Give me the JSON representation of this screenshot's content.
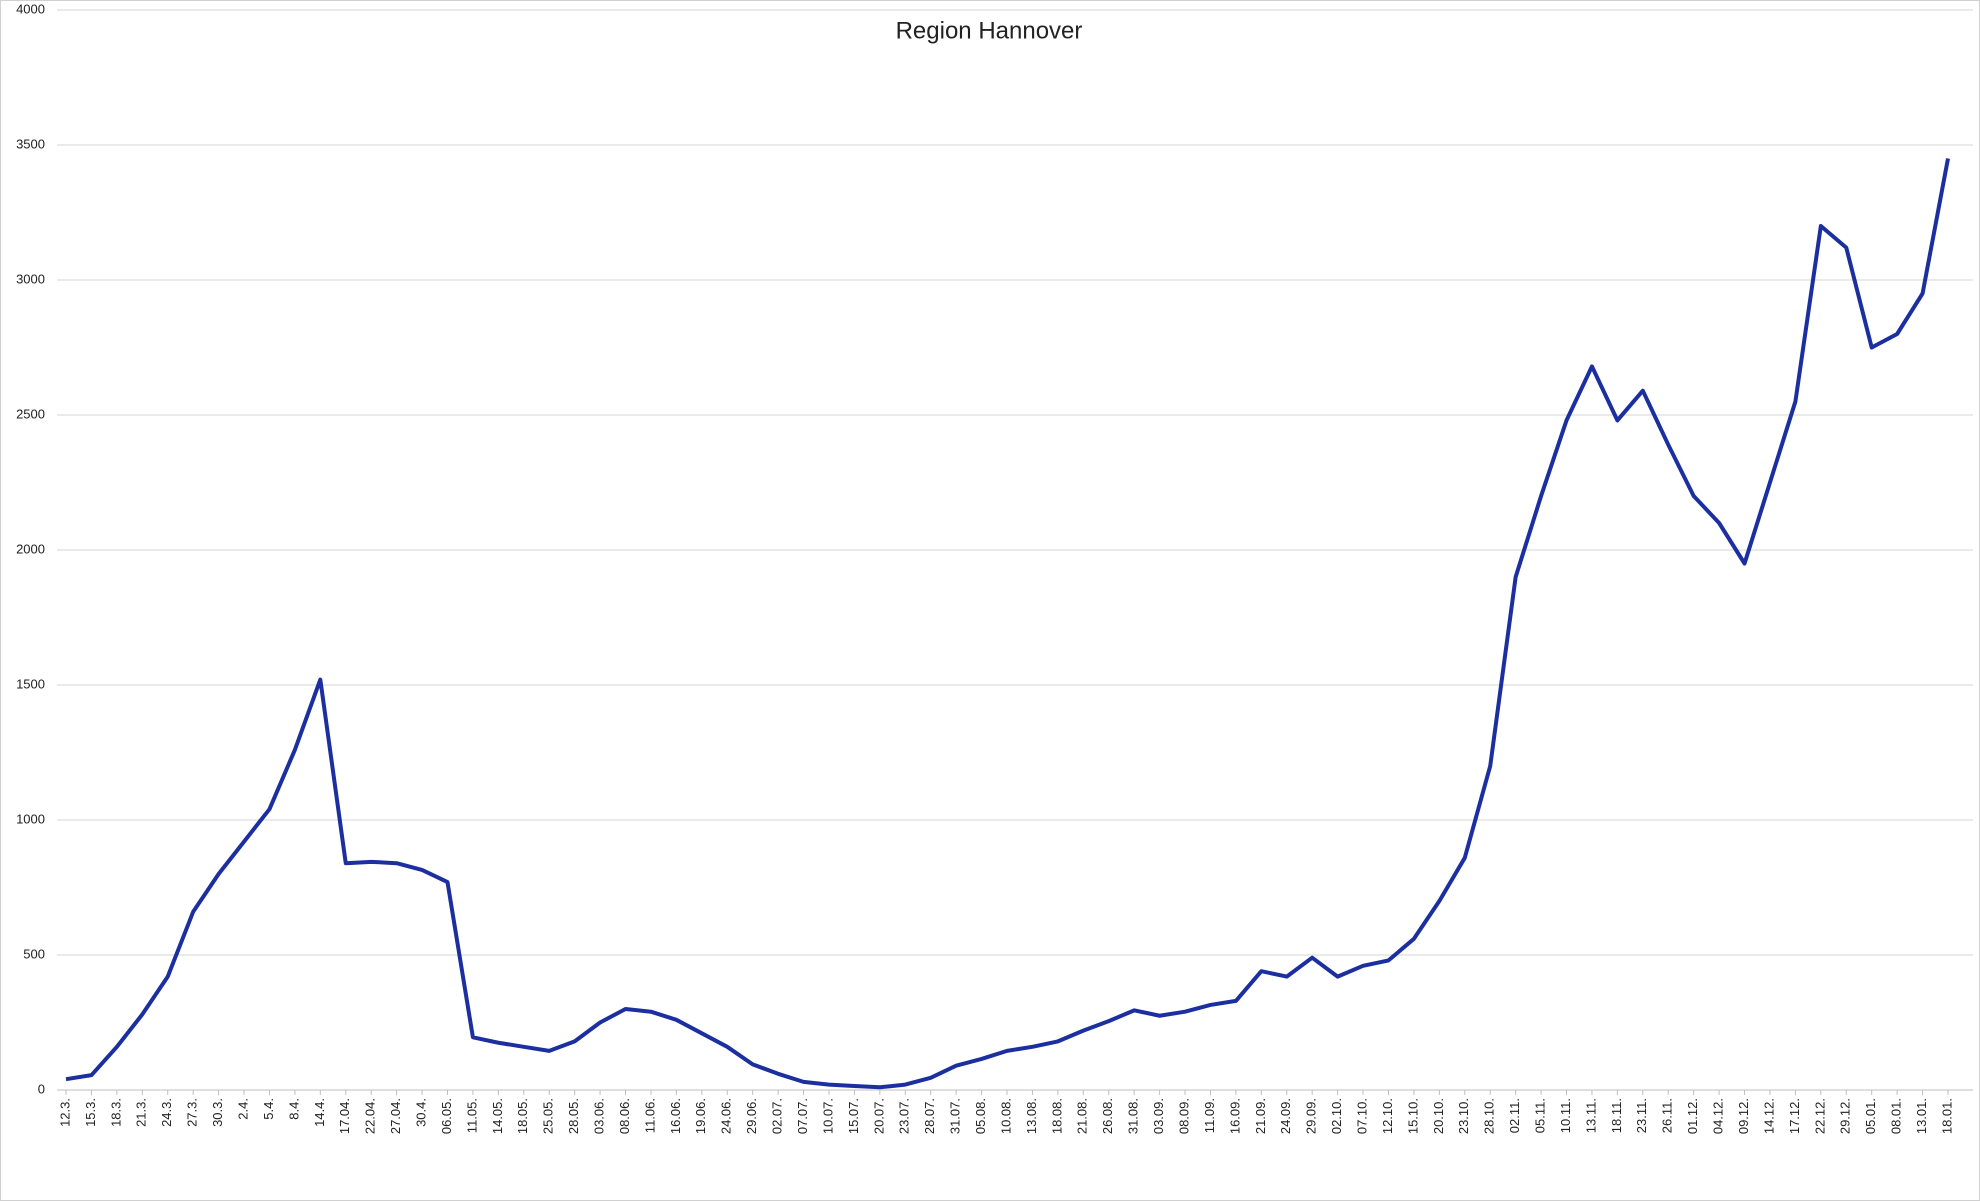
{
  "chart_data": {
    "type": "line",
    "title": "Region Hannover",
    "categories": [
      "12.3.",
      "15.3.",
      "18.3.",
      "21.3.",
      "24.3.",
      "27.3.",
      "30.3.",
      "2.4.",
      "5.4.",
      "8.4.",
      "14.4.",
      "17.04.",
      "22.04.",
      "27.04.",
      "30.4.",
      "06.05.",
      "11.05.",
      "14.05.",
      "18.05.",
      "25.05.",
      "28.05.",
      "03.06.",
      "08.06.",
      "11.06.",
      "16.06.",
      "19.06.",
      "24.06.",
      "29.06.",
      "02.07.",
      "07.07.",
      "10.07.",
      "15.07.",
      "20.07.",
      "23.07.",
      "28.07.",
      "31.07.",
      "05.08.",
      "10.08.",
      "13.08.",
      "18.08.",
      "21.08.",
      "26.08.",
      "31.08.",
      "03.09.",
      "08.09.",
      "11.09.",
      "16.09.",
      "21.09.",
      "24.09.",
      "29.09.",
      "02.10.",
      "07.10.",
      "12.10.",
      "15.10.",
      "20.10.",
      "23.10.",
      "28.10.",
      "02.11.",
      "05.11.",
      "10.11.",
      "13.11.",
      "18.11.",
      "23.11.",
      "26.11.",
      "01.12.",
      "04.12.",
      "09.12.",
      "14.12.",
      "17.12.",
      "22.12.",
      "29.12.",
      "05.01.",
      "08.01.",
      "13.01.",
      "18.01."
    ],
    "series": [
      {
        "color": "#1c2fa0",
        "values": [
          40,
          55,
          160,
          280,
          420,
          660,
          800,
          920,
          1040,
          1260,
          1520,
          840,
          845,
          840,
          815,
          770,
          195,
          175,
          160,
          145,
          180,
          250,
          300,
          290,
          260,
          210,
          160,
          95,
          60,
          30,
          20,
          15,
          10,
          20,
          45,
          90,
          115,
          145,
          160,
          180,
          220,
          255,
          295,
          275,
          290,
          315,
          330,
          440,
          420,
          490,
          420,
          460,
          480,
          560,
          700,
          860,
          1200,
          1900,
          2200,
          2480,
          2680,
          2480,
          2590,
          2390,
          2200,
          2100,
          1950,
          2250,
          2550,
          3200,
          3120,
          2750,
          2800,
          2950,
          3450
        ]
      }
    ],
    "ylim": [
      0,
      4000
    ],
    "yticks": [
      0,
      500,
      1000,
      1500,
      2000,
      2500,
      3000,
      3500,
      4000
    ],
    "grid": true
  }
}
